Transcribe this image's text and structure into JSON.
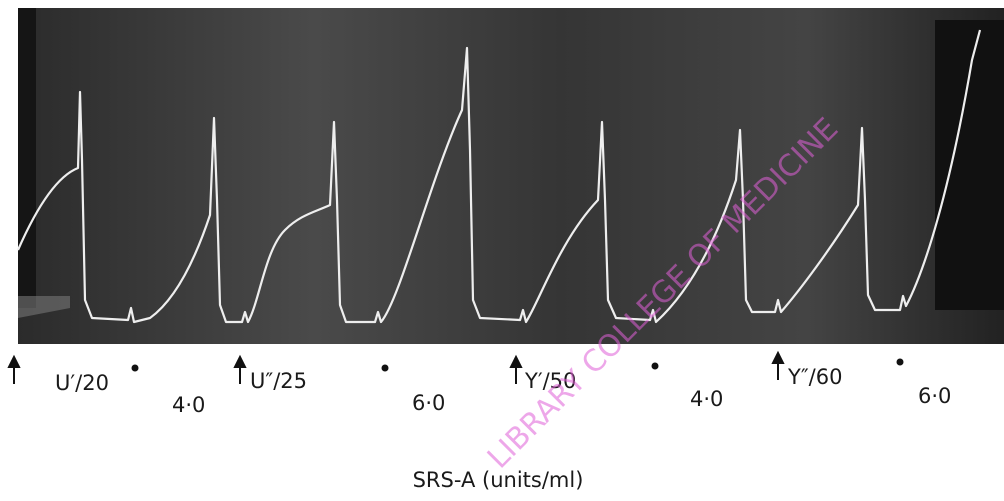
{
  "trace_labels": [
    {
      "dose": "U′/20",
      "amount": "4·0"
    },
    {
      "dose": "U″/25",
      "amount": "6·0"
    },
    {
      "dose": "Y′/50",
      "amount": "4·0"
    },
    {
      "dose": "Y″/60",
      "amount": "6·0"
    }
  ],
  "caption": "SRS-A (units/ml)",
  "watermark": "LIBRARY COLLEGE OF MEDICINE"
}
